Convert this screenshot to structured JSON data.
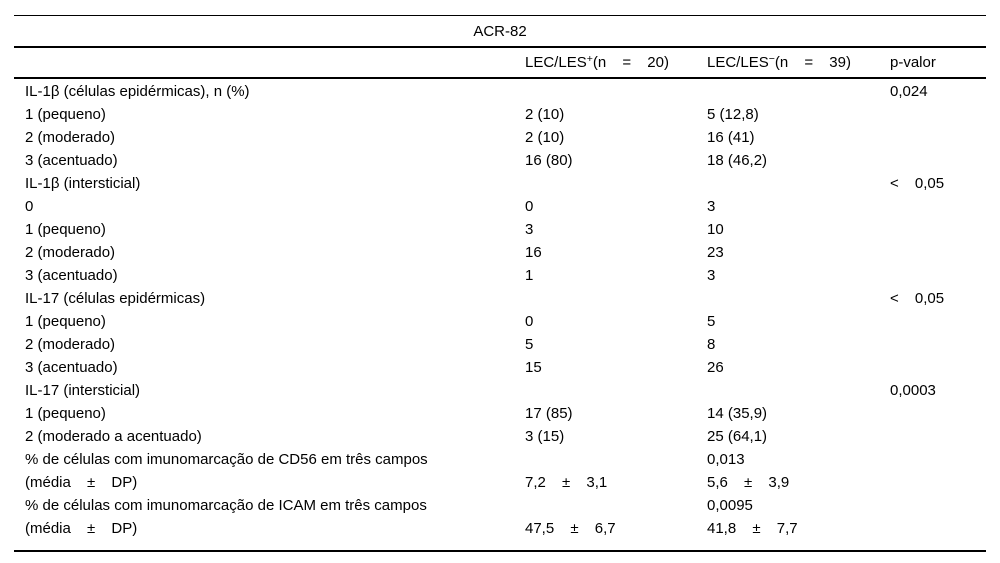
{
  "table": {
    "title": "ACR-82",
    "columns": [
      {
        "label": ""
      },
      {
        "prefix": "LEC/LES",
        "sup": "+",
        "rest": "(n = 20)"
      },
      {
        "prefix": "LEC/LES",
        "sup": "−",
        "rest": "(n = 39)"
      },
      {
        "label": "p-valor"
      }
    ],
    "rows": [
      {
        "cells": [
          "IL-1β (células epidérmicas), n (%)",
          "",
          "",
          "0,024"
        ]
      },
      {
        "cells": [
          "1 (pequeno)",
          "2 (10)",
          "5 (12,8)",
          ""
        ]
      },
      {
        "cells": [
          "2 (moderado)",
          "2 (10)",
          "16 (41)",
          ""
        ]
      },
      {
        "cells": [
          "3 (acentuado)",
          "16 (80)",
          "18 (46,2)",
          ""
        ]
      },
      {
        "cells": [
          "IL-1β (intersticial)",
          "",
          "",
          "< 0,05"
        ]
      },
      {
        "cells": [
          "0",
          "0",
          "3",
          ""
        ]
      },
      {
        "cells": [
          "1 (pequeno)",
          "3",
          "10",
          ""
        ]
      },
      {
        "cells": [
          "2 (moderado)",
          "16",
          "23",
          ""
        ]
      },
      {
        "cells": [
          "3 (acentuado)",
          "1",
          "3",
          ""
        ]
      },
      {
        "cells": [
          "IL-17 (células epidérmicas)",
          "",
          "",
          "< 0,05"
        ]
      },
      {
        "cells": [
          "1 (pequeno)",
          "0",
          "5",
          ""
        ]
      },
      {
        "cells": [
          "2 (moderado)",
          "5",
          "8",
          ""
        ]
      },
      {
        "cells": [
          "3 (acentuado)",
          "15",
          "26",
          ""
        ]
      },
      {
        "cells": [
          "IL-17 (intersticial)",
          "",
          "",
          "0,0003"
        ]
      },
      {
        "cells": [
          "1 (pequeno)",
          "17 (85)",
          "14 (35,9)",
          ""
        ]
      },
      {
        "cells": [
          "2 (moderado a acentuado)",
          "3 (15)",
          "25 (64,1)",
          ""
        ]
      },
      {
        "cells": [
          "% de células com imunomarcação de CD56 em três campos",
          "",
          "0,013",
          ""
        ]
      },
      {
        "cells": [
          "(média ± DP)",
          "7,2 ± 3,1",
          "5,6 ± 3,9",
          ""
        ]
      },
      {
        "cells": [
          "% de células com imunomarcação de ICAM em três campos",
          "",
          "0,0095",
          ""
        ]
      },
      {
        "cells": [
          "(média ± DP)",
          "47,5 ± 6,7",
          "41,8 ± 7,7",
          ""
        ]
      }
    ]
  }
}
